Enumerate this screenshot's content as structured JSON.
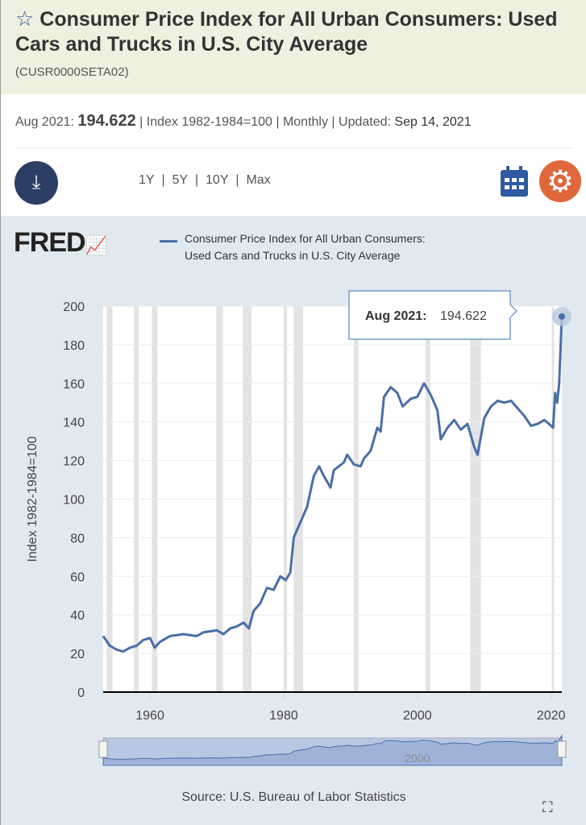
{
  "header": {
    "title": "Consumer Price Index for All Urban Consumers: Used Cars and Trucks in U.S. City Average",
    "series_id": "(CUSR0000SETA02)",
    "star_icon": "star-outline-icon"
  },
  "meta": {
    "date": "Aug 2021:",
    "value": "194.622",
    "units": "| Index 1982-1984=100 | Monthly | Updated:",
    "updated": "Sep 14, 2021"
  },
  "toolbar": {
    "ranges": [
      "1Y",
      "5Y",
      "10Y",
      "Max"
    ],
    "separator": "|",
    "download_icon": "download-icon",
    "calendar_icon": "calendar-icon",
    "settings_icon": "gear-icon"
  },
  "colors": {
    "line": "#4a6ea8",
    "accent": "#e0663c",
    "nav": "#2c3e66",
    "recession": "#e3e3e3"
  },
  "chart": {
    "logo": "FRED",
    "source": "Source: U.S. Bureau of Labor Statistics",
    "tooltip_date": "Aug 2021:",
    "tooltip_value": "194.622",
    "navigator_label": "2000"
  },
  "chart_data": {
    "type": "line",
    "legend": "Consumer Price Index for All Urban Consumers: Used Cars and Trucks in U.S. City Average",
    "legend_position": "top-left",
    "ylabel": "Index 1982-1984=100",
    "ylim": [
      0,
      200
    ],
    "xlim": [
      1953,
      2021.6
    ],
    "yticks": [
      0,
      20,
      40,
      60,
      80,
      100,
      120,
      140,
      160,
      180,
      200
    ],
    "xticks": [
      1960,
      1980,
      2000,
      2020
    ],
    "grid": true,
    "recessions": [
      [
        1953.5,
        1954.4
      ],
      [
        1957.6,
        1958.3
      ],
      [
        1960.3,
        1961.1
      ],
      [
        1969.9,
        1970.9
      ],
      [
        1973.9,
        1975.2
      ],
      [
        1980.0,
        1980.5
      ],
      [
        1981.5,
        1982.9
      ],
      [
        1990.5,
        1991.2
      ],
      [
        2001.2,
        2001.9
      ],
      [
        2007.9,
        2009.5
      ],
      [
        2020.1,
        2020.3
      ]
    ],
    "x": [
      1953,
      1954,
      1955,
      1956,
      1957,
      1958,
      1959,
      1960,
      1960.7,
      1961.5,
      1963,
      1965,
      1967,
      1968,
      1970,
      1971,
      1972,
      1973,
      1974,
      1974.8,
      1975.5,
      1976.5,
      1977.5,
      1978.5,
      1979.5,
      1980.3,
      1981,
      1981.5,
      1982.5,
      1983.5,
      1984.5,
      1985.3,
      1986,
      1987,
      1987.5,
      1989,
      1989.5,
      1990.5,
      1991.5,
      1992,
      1993,
      1994,
      1994.5,
      1995,
      1996,
      1997,
      1997.8,
      1999,
      2000,
      2001,
      2002,
      2003,
      2003.5,
      2004.5,
      2005.5,
      2006.5,
      2007.5,
      2008.5,
      2009,
      2010,
      2011,
      2012,
      2013,
      2014,
      2015,
      2016,
      2017,
      2018,
      2019,
      2020,
      2020.3,
      2020.6,
      2020.9,
      2021.2,
      2021.6
    ],
    "y": [
      29,
      24,
      22,
      21,
      23,
      24,
      27,
      28,
      23,
      26,
      29,
      30,
      29,
      31,
      32,
      30,
      33,
      34,
      36,
      33,
      42,
      46,
      54,
      53,
      60,
      58,
      62,
      80,
      88,
      96,
      112,
      117,
      112,
      106,
      115,
      119,
      123,
      118,
      117,
      121,
      125,
      137,
      135,
      153,
      158,
      155,
      148,
      152,
      153,
      160,
      154,
      146,
      131,
      137,
      141,
      136,
      139,
      127,
      123,
      142,
      148,
      151,
      150,
      151,
      147,
      143,
      138,
      139,
      141,
      138,
      137,
      155,
      150,
      160,
      194.622
    ]
  }
}
